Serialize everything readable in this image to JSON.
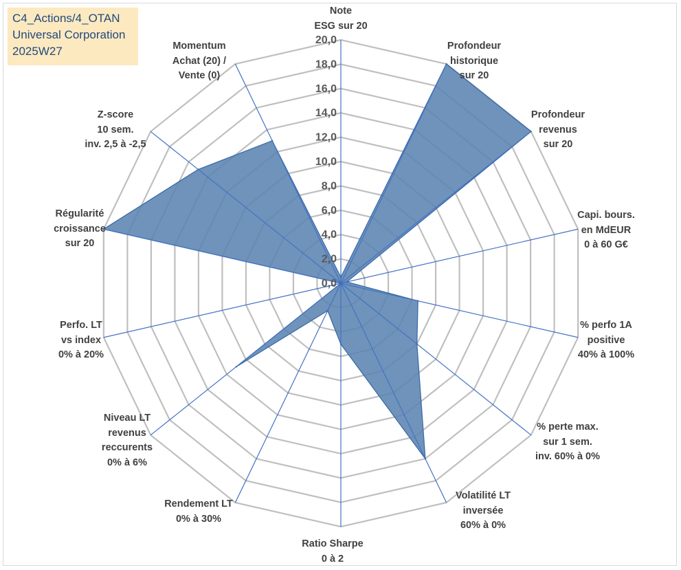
{
  "header": {
    "lines": [
      "C4_Actions/4_OTAN",
      "Universal Corporation",
      "2025W27"
    ]
  },
  "chart_data": {
    "type": "radar",
    "title": "",
    "rlim": [
      0,
      20
    ],
    "rticks": [
      "0,0",
      "2,0",
      "4,0",
      "6,0",
      "8,0",
      "10,0",
      "12,0",
      "14,0",
      "16,0",
      "18,0",
      "20,0"
    ],
    "grid": true,
    "categories": [
      [
        "Note",
        "ESG sur 20"
      ],
      [
        "Profondeur",
        "historique",
        "sur 20"
      ],
      [
        "Profondeur",
        "revenus",
        "sur 20"
      ],
      [
        "Capi. bours.",
        "en MdEUR",
        "0 à 60 G€"
      ],
      [
        "% perfo 1A",
        "positive",
        "40% à 100%"
      ],
      [
        "% perte max.",
        "sur 1 sem.",
        "inv. 60% à 0%"
      ],
      [
        "Volatilité LT",
        "inversée",
        "60% à 0%"
      ],
      [
        "Ratio Sharpe",
        "0 à 2"
      ],
      [
        "Rendement LT",
        "0% à 30%"
      ],
      [
        "Niveau LT",
        "revenus",
        "reccurents",
        "0% à 6%"
      ],
      [
        "Perfo. LT",
        "vs index",
        "0% à 20%"
      ],
      [
        "Régularité",
        "croissance",
        "sur 20"
      ],
      [
        "Z-score",
        "10 sem.",
        "inv. 2,5 à -2,5"
      ],
      [
        "Momentum",
        "Achat (20) /",
        "Vente (0)"
      ]
    ],
    "series": [
      {
        "values": [
          0.5,
          20.0,
          20.0,
          0.5,
          6.5,
          8.0,
          16.0,
          5.0,
          2.5,
          11.0,
          0.0,
          20.0,
          15.0,
          13.0
        ]
      }
    ],
    "colors": {
      "fill": "#5b84b1",
      "stroke": "#3c6ca8",
      "grid": "#bfbfbf",
      "spoke": "#4472c4",
      "tick": "#595959",
      "label": "#404040"
    }
  }
}
